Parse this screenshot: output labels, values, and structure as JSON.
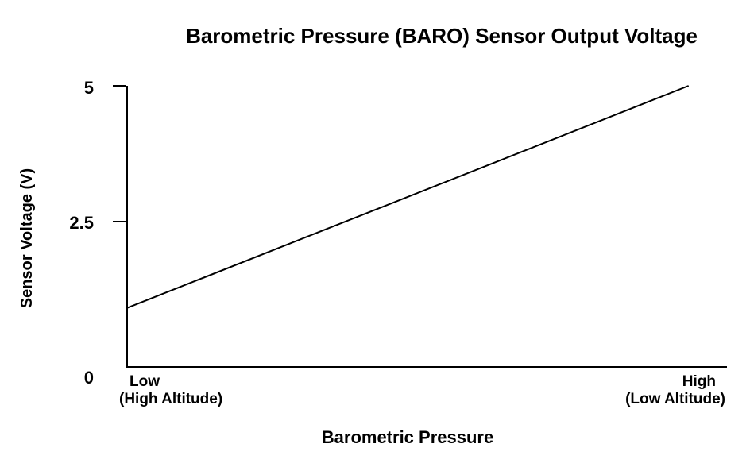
{
  "chart_data": {
    "type": "line",
    "title": "Barometric Pressure (BARO) Sensor Output Voltage",
    "xlabel": "Barometric Pressure",
    "ylabel": "Sensor Voltage (V)",
    "ylim": [
      0,
      5
    ],
    "grid": false,
    "legend": "none",
    "colors": {
      "line": "#000000",
      "axis": "#000000",
      "background": "#ffffff",
      "text": "#000000"
    },
    "y_ticks": [
      {
        "value": 5,
        "label": "5"
      },
      {
        "value": 2.5,
        "label": "2.5"
      },
      {
        "value": 0,
        "label": "0"
      }
    ],
    "x_endpoints": {
      "low": {
        "line1": "Low",
        "line2": "(High Altitude)"
      },
      "high": {
        "line1": "High",
        "line2": "(Low Altitude)"
      }
    },
    "series": [
      {
        "name": "BARO sensor output voltage",
        "color": "#000000",
        "points": [
          {
            "x_label": "Low (High Altitude)",
            "x_frac": 0.0,
            "voltage": 1.05
          },
          {
            "x_label": "High (Low Altitude)",
            "x_frac": 0.936,
            "voltage": 5.0
          }
        ]
      }
    ]
  }
}
